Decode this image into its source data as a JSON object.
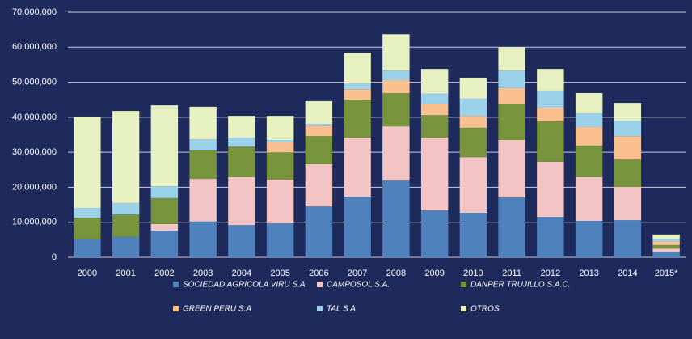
{
  "chart_data": {
    "type": "stacked_bar",
    "categories": [
      "2000",
      "2001",
      "2002",
      "2003",
      "2004",
      "2005",
      "2006",
      "2007",
      "2008",
      "2009",
      "2010",
      "2011",
      "2012",
      "2013",
      "2014",
      "2015*"
    ],
    "series": [
      {
        "name": "SOCIEDAD AGRICOLA VIRU S.A.",
        "color": "#4f81bd",
        "values": [
          5100000,
          5800000,
          7600000,
          10200000,
          9200000,
          9700000,
          14500000,
          17300000,
          21900000,
          13400000,
          12700000,
          17100000,
          11500000,
          10400000,
          10600000,
          1500000
        ]
      },
      {
        "name": "CAMPOSOL S.A.",
        "color": "#f2c4c4",
        "values": [
          0,
          0,
          1900000,
          12200000,
          13700000,
          12500000,
          12100000,
          16900000,
          15500000,
          20800000,
          15900000,
          16400000,
          15800000,
          12500000,
          9500000,
          1000000
        ]
      },
      {
        "name": "DANPER TRUJILLO S.A.C.",
        "color": "#77933c",
        "values": [
          6200000,
          6400000,
          7400000,
          8100000,
          8700000,
          7800000,
          8000000,
          10800000,
          9500000,
          6400000,
          8400000,
          10400000,
          11500000,
          9000000,
          7800000,
          1000000
        ]
      },
      {
        "name": "GREEN PERU S.A",
        "color": "#fac090",
        "values": [
          0,
          0,
          0,
          0,
          0,
          2800000,
          3000000,
          3000000,
          3700000,
          3300000,
          3400000,
          4400000,
          3900000,
          5300000,
          6700000,
          1000000
        ]
      },
      {
        "name": "TAL S A",
        "color": "#9bd2ea",
        "values": [
          2800000,
          3300000,
          3400000,
          3200000,
          2600000,
          700000,
          500000,
          1700000,
          2700000,
          2800000,
          4900000,
          5000000,
          4900000,
          3900000,
          4400000,
          800000
        ]
      },
      {
        "name": "OTROS",
        "color": "#e6f0c0",
        "values": [
          26100000,
          26300000,
          23100000,
          9300000,
          6200000,
          6900000,
          6500000,
          8700000,
          10400000,
          7100000,
          6000000,
          6700000,
          6200000,
          5800000,
          5100000,
          1200000
        ]
      }
    ],
    "ylim": [
      0,
      70000000
    ],
    "yticks": [
      0,
      {
        "value": 10000000,
        "label": "10,000,000"
      },
      {
        "value": 20000000,
        "label": "20,000,000"
      },
      {
        "value": 30000000,
        "label": "30,000,000"
      },
      {
        "value": 40000000,
        "label": "40,000,000"
      },
      {
        "value": 50000000,
        "label": "50,000,000"
      },
      {
        "value": 60000000,
        "label": "60,000,000"
      },
      {
        "value": 70000000,
        "label": "70,000,000"
      }
    ],
    "grid": true
  }
}
